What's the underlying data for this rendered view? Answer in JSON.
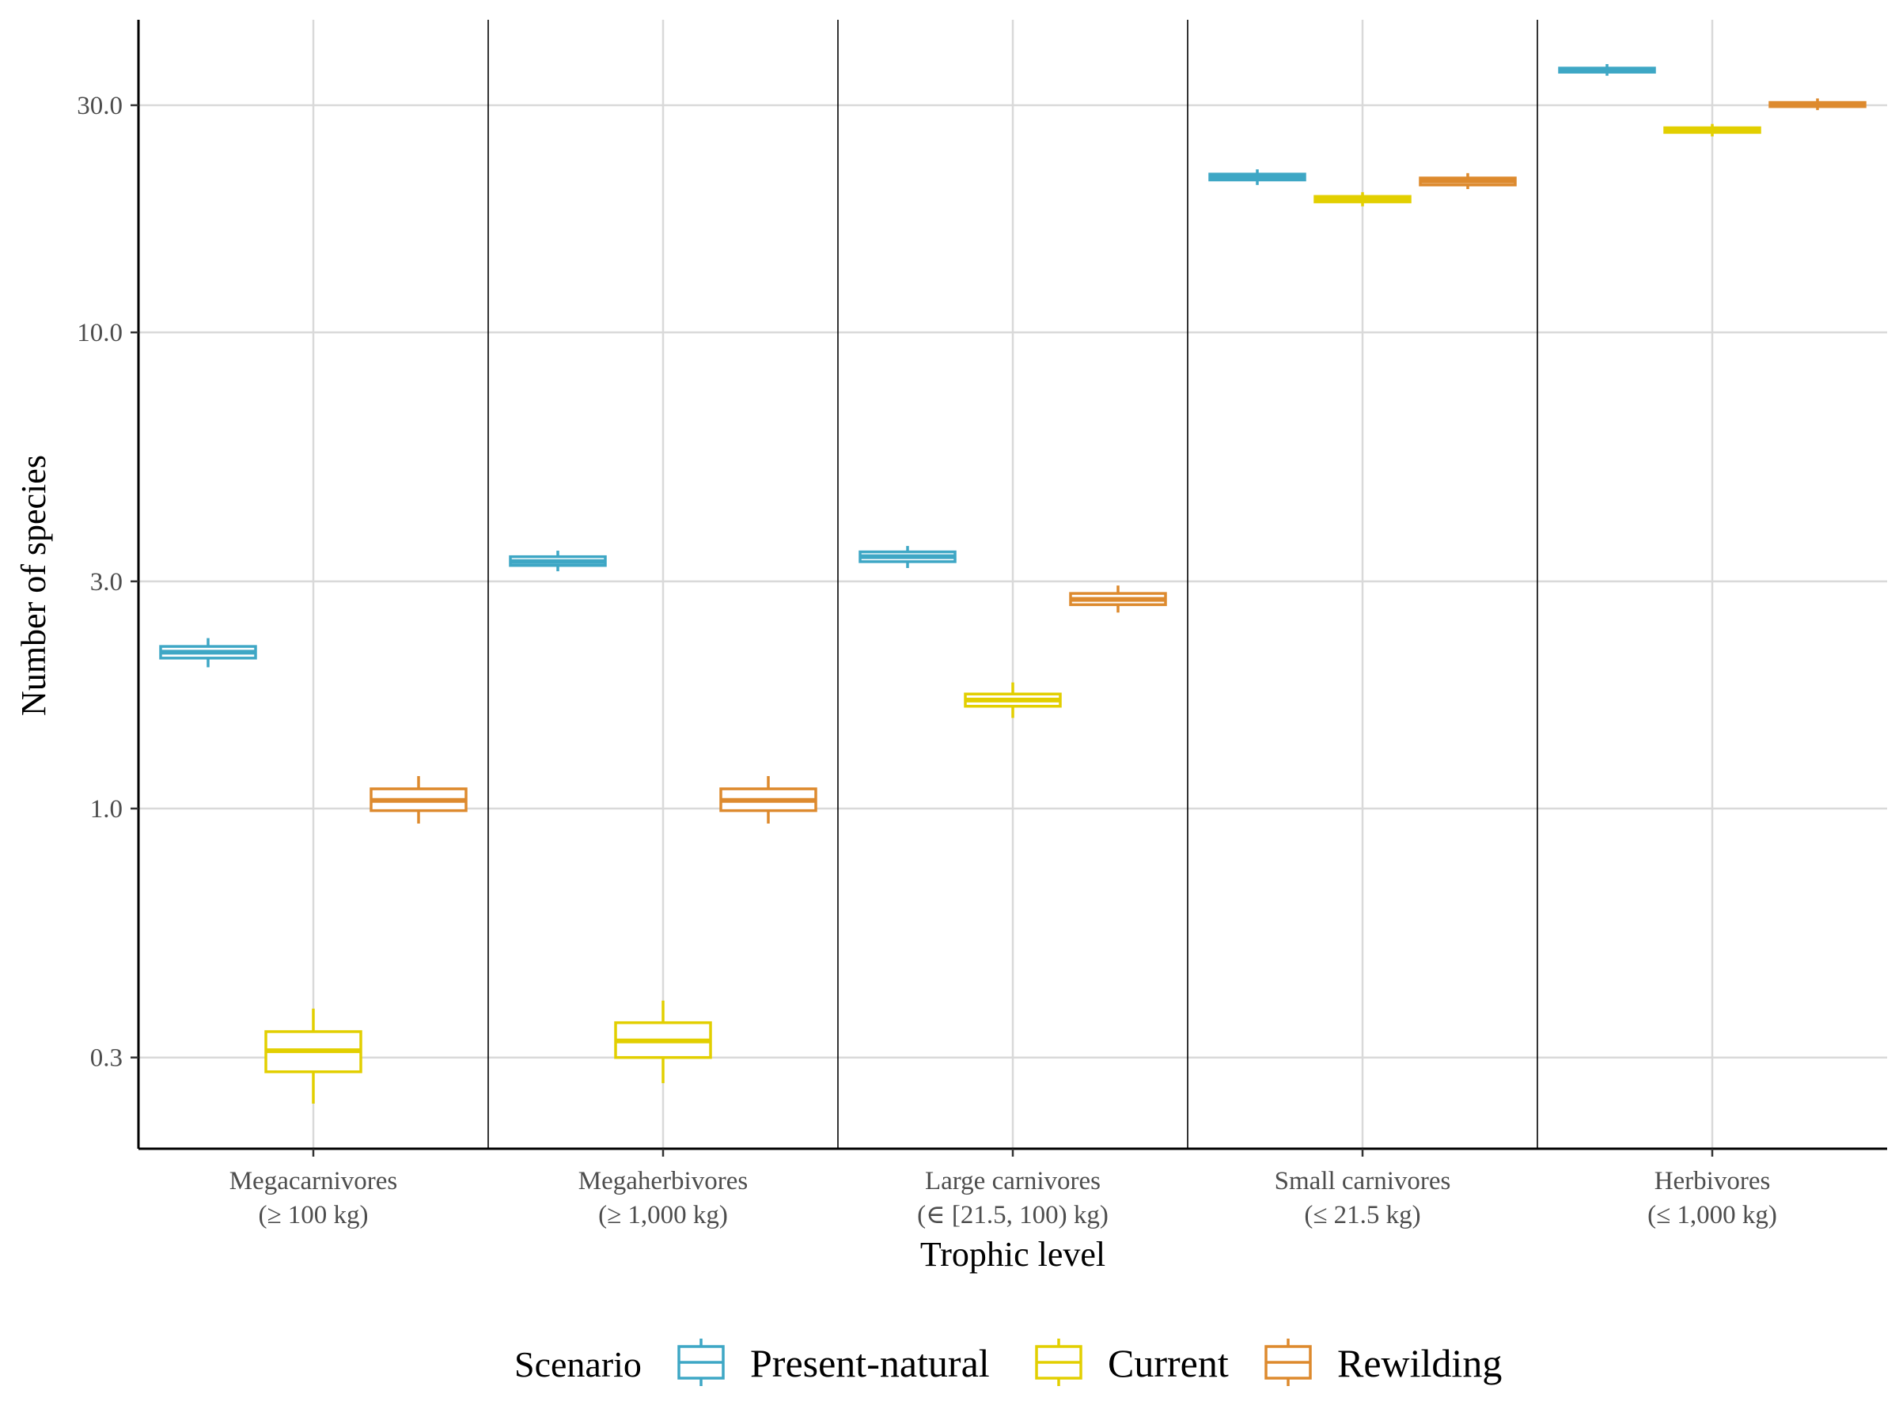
{
  "chart_data": {
    "type": "boxplot",
    "xlabel": "Trophic level",
    "ylabel": "Number of species",
    "y_scale": "log10",
    "ylim": [
      0.2,
      46
    ],
    "y_ticks": [
      "0.3",
      "1.0",
      "3.0",
      "10.0",
      "30.0"
    ],
    "grid": true,
    "legend_position": "bottom",
    "legend_title": "Scenario",
    "categories": [
      {
        "line1": "Megacarnivores",
        "line2": "(≥ 100 kg)"
      },
      {
        "line1": "Megaherbivores",
        "line2": "(≥ 1,000 kg)"
      },
      {
        "line1": "Large carnivores",
        "line2": "(∈ [21.5, 100) kg)"
      },
      {
        "line1": "Small carnivores",
        "line2": "(≤ 21.5 kg)"
      },
      {
        "line1": "Herbivores",
        "line2": "(≤ 1,000 kg)"
      }
    ],
    "series": [
      {
        "name": "Present-natural",
        "color": "#3ea7c5",
        "boxes": [
          {
            "whisker_low": 1.98,
            "q1": 2.07,
            "median": 2.13,
            "q3": 2.19,
            "whisker_high": 2.28
          },
          {
            "whisker_low": 3.15,
            "q1": 3.24,
            "median": 3.3,
            "q3": 3.38,
            "whisker_high": 3.48
          },
          {
            "whisker_low": 3.2,
            "q1": 3.3,
            "median": 3.38,
            "q3": 3.46,
            "whisker_high": 3.56
          },
          {
            "whisker_low": 20.4,
            "q1": 20.9,
            "median": 21.2,
            "q3": 21.5,
            "whisker_high": 22.0
          },
          {
            "whisker_low": 34.6,
            "q1": 35.2,
            "median": 35.6,
            "q3": 35.9,
            "whisker_high": 36.6
          }
        ]
      },
      {
        "name": "Current",
        "color": "#e2cf00",
        "boxes": [
          {
            "whisker_low": 0.24,
            "q1": 0.28,
            "median": 0.31,
            "q3": 0.34,
            "whisker_high": 0.38
          },
          {
            "whisker_low": 0.265,
            "q1": 0.3,
            "median": 0.325,
            "q3": 0.355,
            "whisker_high": 0.395
          },
          {
            "whisker_low": 1.55,
            "q1": 1.64,
            "median": 1.69,
            "q3": 1.74,
            "whisker_high": 1.84
          },
          {
            "whisker_low": 18.4,
            "q1": 18.8,
            "median": 19.1,
            "q3": 19.3,
            "whisker_high": 19.7
          },
          {
            "whisker_low": 25.8,
            "q1": 26.3,
            "median": 26.6,
            "q3": 26.9,
            "whisker_high": 27.4
          }
        ]
      },
      {
        "name": "Rewilding",
        "color": "#dd8a2e",
        "boxes": [
          {
            "whisker_low": 0.93,
            "q1": 0.99,
            "median": 1.04,
            "q3": 1.1,
            "whisker_high": 1.17
          },
          {
            "whisker_low": 0.93,
            "q1": 0.99,
            "median": 1.04,
            "q3": 1.1,
            "whisker_high": 1.17
          },
          {
            "whisker_low": 2.58,
            "q1": 2.68,
            "median": 2.75,
            "q3": 2.83,
            "whisker_high": 2.94
          },
          {
            "whisker_low": 20.0,
            "q1": 20.4,
            "median": 20.8,
            "q3": 21.1,
            "whisker_high": 21.6
          },
          {
            "whisker_low": 29.3,
            "q1": 29.8,
            "median": 30.1,
            "q3": 30.4,
            "whisker_high": 31.0
          }
        ]
      }
    ]
  }
}
